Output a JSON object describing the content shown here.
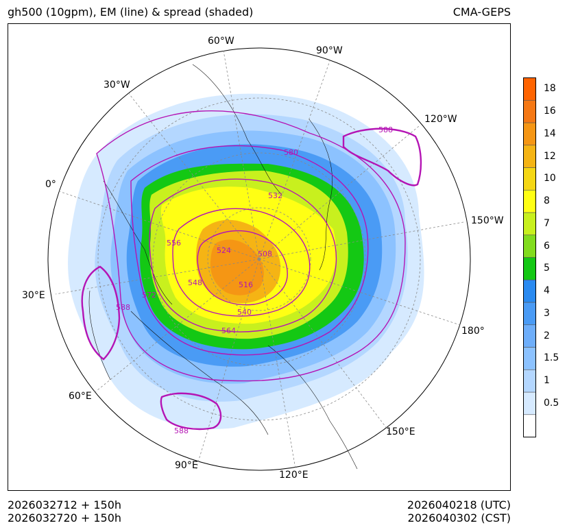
{
  "header": {
    "title": "gh500 (10gpm), EM (line) & spread (shaded)",
    "model": "CMA-GEPS"
  },
  "footer": {
    "init_utc": "2026032712 + 150h",
    "init_cst": "2026032720 + 150h",
    "valid_utc": "2026040218 (UTC)",
    "valid_cst": "2026040302 (CST)"
  },
  "map": {
    "projection": "north-polar-stereographic",
    "longitude_labels": [
      "60°W",
      "90°W",
      "30°W",
      "120°W",
      "0°",
      "150°W",
      "30°E",
      "180°",
      "60°E",
      "150°E",
      "90°E",
      "120°E"
    ],
    "contour_labels": [
      "588",
      "580",
      "532",
      "556",
      "524",
      "508",
      "548",
      "516",
      "572",
      "540",
      "588",
      "564",
      "588"
    ]
  },
  "colorbar": {
    "levels": [
      "0.5",
      "1",
      "1.5",
      "2",
      "3",
      "4",
      "5",
      "6",
      "7",
      "8",
      "10",
      "12",
      "14",
      "16",
      "18"
    ],
    "colors": [
      "#ffffff",
      "#d6eaff",
      "#b4d7ff",
      "#8cc2ff",
      "#6eaefa",
      "#4a9bf5",
      "#2a8af0",
      "#14c814",
      "#82dc1e",
      "#c8f01e",
      "#ffff14",
      "#f5d714",
      "#f5b414",
      "#f59614",
      "#f57814",
      "#ff6400"
    ]
  }
}
